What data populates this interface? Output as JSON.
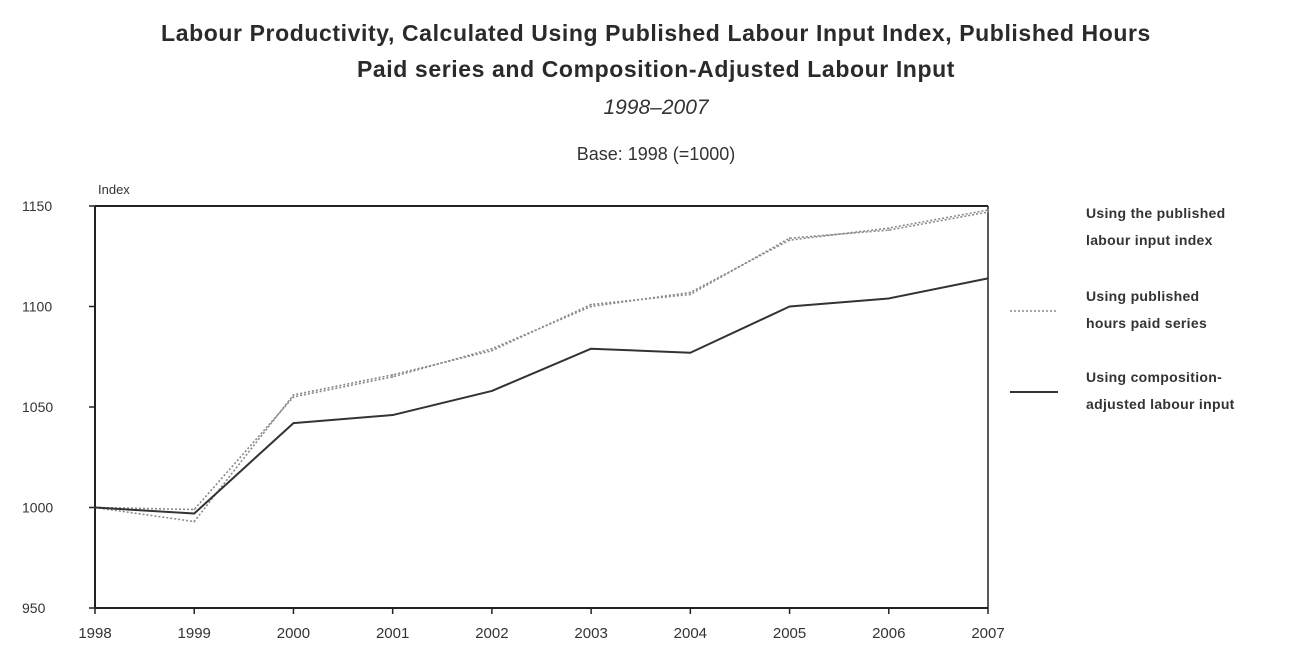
{
  "chart_data": {
    "type": "line",
    "title_lines": [
      "Labour Productivity, Calculated Using Published Labour Input Index, Published Hours",
      "Paid series and Composition-Adjusted Labour Input"
    ],
    "subtitle": "1998–2007",
    "base_note": "Base: 1998 (=1000)",
    "ylabel": "Index",
    "xlabel": "",
    "x": [
      "1998",
      "1999",
      "2000",
      "2001",
      "2002",
      "2003",
      "2004",
      "2005",
      "2006",
      "2007"
    ],
    "ylim": [
      950,
      1150
    ],
    "yticks": [
      950,
      1000,
      1050,
      1100,
      1150
    ],
    "series": [
      {
        "name": "Using the published labour input index",
        "style": "dotted",
        "values": [
          1000,
          999,
          1055,
          1065,
          1079,
          1100,
          1107,
          1133,
          1139,
          1148
        ]
      },
      {
        "name": "Using published hours paid series",
        "style": "dotted",
        "values": [
          1000,
          993,
          1056,
          1066,
          1078,
          1101,
          1106,
          1134,
          1138,
          1147
        ]
      },
      {
        "name": "Using composition-adjusted labour input",
        "style": "solid",
        "values": [
          1000,
          997,
          1042,
          1046,
          1058,
          1079,
          1077,
          1100,
          1104,
          1114
        ]
      }
    ],
    "legend_labels": [
      [
        "Using the published",
        "labour input index"
      ],
      [
        "Using published",
        "hours paid series"
      ],
      [
        "Using composition-",
        "adjusted labour input"
      ]
    ],
    "legend_position": "right",
    "grid": false,
    "colors": {
      "line": "#333333",
      "dotted": "#8a8a8a",
      "axis": "#222222"
    }
  }
}
